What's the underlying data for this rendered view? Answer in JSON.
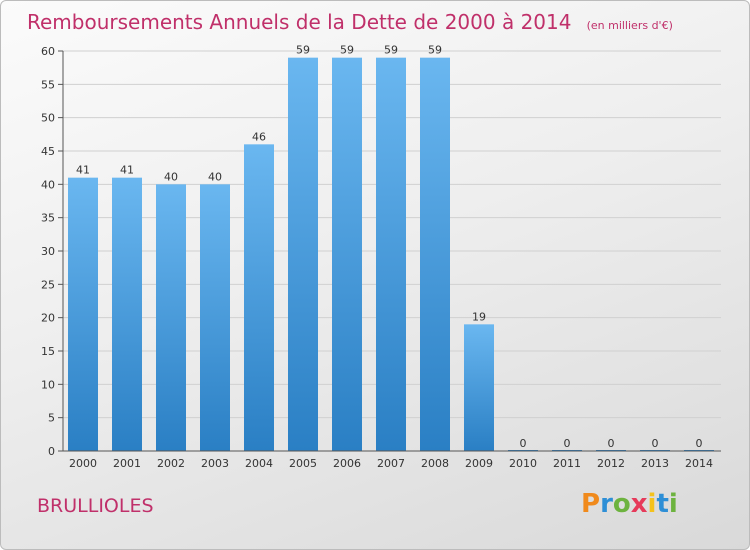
{
  "colors": {
    "title": "#c0306a",
    "bar_top": "#6ab7f0",
    "bar_bottom": "#2a7fc4",
    "grid": "#d0d0d0",
    "axis": "#555555"
  },
  "footer": {
    "commune": "BRULLIOLES",
    "brand_letters": [
      "P",
      "r",
      "o",
      "x",
      "i",
      "t",
      "i"
    ],
    "brand_colors": [
      "#f08a1c",
      "#2e8fd6",
      "#6db33f",
      "#e63a5a",
      "#f4c21c",
      "#2e8fd6",
      "#6db33f"
    ]
  },
  "chart_data": {
    "type": "bar",
    "title": "Remboursements Annuels de la Dette de 2000 à 2014",
    "unit": "(en milliers d'€)",
    "xlabel": "",
    "ylabel": "",
    "categories": [
      "2000",
      "2001",
      "2002",
      "2003",
      "2004",
      "2005",
      "2006",
      "2007",
      "2008",
      "2009",
      "2010",
      "2011",
      "2012",
      "2013",
      "2014"
    ],
    "values": [
      41,
      41,
      40,
      40,
      46,
      59,
      59,
      59,
      59,
      19,
      0,
      0,
      0,
      0,
      0
    ],
    "value_labels": [
      "41",
      "41",
      "40",
      "40",
      "46",
      "59",
      "59",
      "59",
      "59",
      "19",
      "0",
      "0",
      "0",
      "0",
      "0"
    ],
    "ylim": [
      0,
      60
    ],
    "yticks": [
      0,
      5,
      10,
      15,
      20,
      25,
      30,
      35,
      40,
      45,
      50,
      55,
      60
    ],
    "ytick_labels": [
      "0",
      "5",
      "10",
      "15",
      "20",
      "25",
      "30",
      "35",
      "40",
      "45",
      "50",
      "55",
      "60"
    ],
    "grid": true,
    "legend": "none"
  }
}
